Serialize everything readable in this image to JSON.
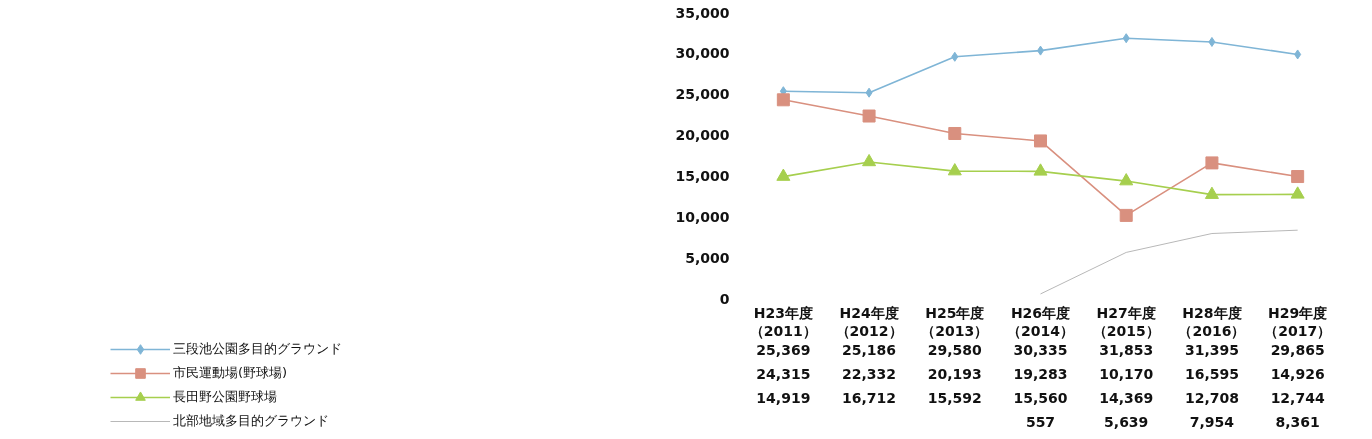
{
  "chart_data": {
    "type": "line",
    "categories": [
      "H23年度（2011）",
      "H24年度（2012）",
      "H25年度（2013）",
      "H26年度（2014）",
      "H27年度（2015）",
      "H28年度（2016）",
      "H29年度（2017）"
    ],
    "ylim": [
      0,
      35000
    ],
    "yticks": [
      {
        "value": 0,
        "label": "0"
      },
      {
        "value": 5000,
        "label": "5,000"
      },
      {
        "value": 10000,
        "label": "10,000"
      },
      {
        "value": 15000,
        "label": "15,000"
      },
      {
        "value": 20000,
        "label": "20,000"
      },
      {
        "value": 25000,
        "label": "25,000"
      },
      {
        "value": 30000,
        "label": "30,000"
      },
      {
        "value": 35000,
        "label": "35,000"
      }
    ],
    "grid": false,
    "legend": "bottom left",
    "line_style": "solid",
    "series": [
      {
        "name": "三段池公園多目的グラウンド",
        "color": "#7fb5d6",
        "marker": "diamond",
        "values": [
          25369,
          25186,
          29580,
          30335,
          31853,
          31395,
          29865
        ],
        "value_labels": [
          "25,369",
          "25,186",
          "29,580",
          "30,335",
          "31,853",
          "31,395",
          "29,865"
        ]
      },
      {
        "name": "市民運動場(野球場)",
        "color": "#d9907f",
        "marker": "square",
        "values": [
          24315,
          22332,
          20193,
          19283,
          10170,
          16595,
          14926
        ],
        "value_labels": [
          "24,315",
          "22,332",
          "20,193",
          "19,283",
          "10,170",
          "16,595",
          "14,926"
        ]
      },
      {
        "name": "長田野公園野球場",
        "color": "#a6cf4e",
        "marker": "triangle",
        "values": [
          14919,
          16712,
          15592,
          15560,
          14369,
          12708,
          12744
        ],
        "value_labels": [
          "14,919",
          "16,712",
          "15,592",
          "15,560",
          "14,369",
          "12,708",
          "12,744"
        ]
      },
      {
        "name": "北部地域多目的グラウンド",
        "color": "#b8b8b8",
        "marker": "none",
        "values": [
          null,
          null,
          null,
          557,
          5639,
          7954,
          8361
        ],
        "value_labels": [
          null,
          null,
          null,
          "557",
          "5,639",
          "7,954",
          "8,361"
        ]
      }
    ]
  }
}
